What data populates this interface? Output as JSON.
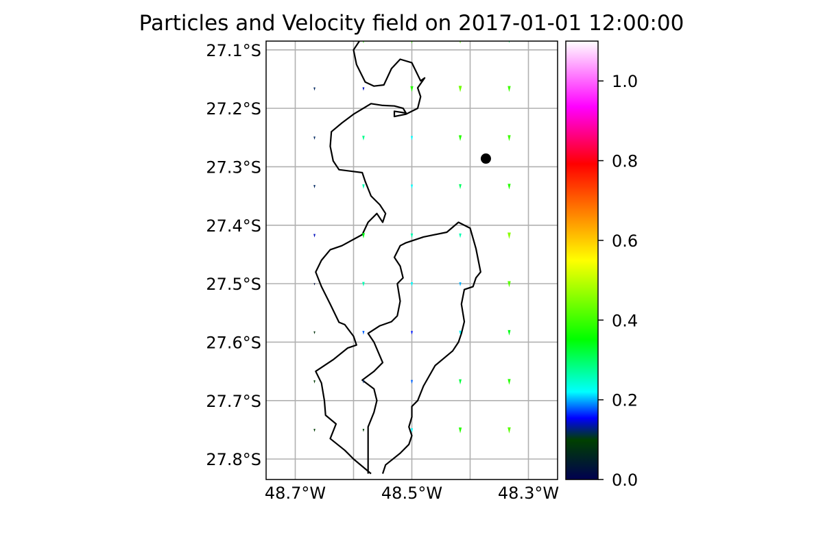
{
  "chart_data": [
    {
      "type": "quiver-map",
      "title": "Particles and Velocity field on 2017-01-01 12:00:00",
      "xlabel": "",
      "ylabel": "",
      "xlim": [
        -48.75,
        -48.25
      ],
      "ylim": [
        -27.835,
        -27.085
      ],
      "x_ticks": [
        {
          "value": -48.7,
          "label": "48.7°W"
        },
        {
          "value": -48.5,
          "label": "48.5°W"
        },
        {
          "value": -48.3,
          "label": "48.3°W"
        }
      ],
      "y_ticks": [
        {
          "value": -27.1,
          "label": "27.1°S"
        },
        {
          "value": -27.2,
          "label": "27.2°S"
        },
        {
          "value": -27.3,
          "label": "27.3°S"
        },
        {
          "value": -27.4,
          "label": "27.4°S"
        },
        {
          "value": -27.5,
          "label": "27.5°S"
        },
        {
          "value": -27.6,
          "label": "27.6°S"
        },
        {
          "value": -27.7,
          "label": "27.7°S"
        },
        {
          "value": -27.8,
          "label": "27.8°S"
        }
      ],
      "grid": true,
      "grid_x": [
        -48.7,
        -48.6,
        -48.5,
        -48.4,
        -48.3
      ],
      "grid_y": [
        -27.1,
        -27.2,
        -27.3,
        -27.4,
        -27.5,
        -27.6,
        -27.7,
        -27.8
      ],
      "particles": [
        {
          "lon": -48.373,
          "lat": -27.286
        }
      ],
      "vector_columns": [
        -48.667,
        -48.583,
        -48.5,
        -48.417,
        -48.333
      ],
      "vector_rows": [
        -27.084,
        -27.167,
        -27.251,
        -27.334,
        -27.418,
        -27.501,
        -27.584,
        -27.668,
        -27.751
      ],
      "speed_grid": [
        [
          null,
          0.38,
          0.4,
          0.42,
          0.3
        ],
        [
          0.12,
          0.14,
          0.38,
          0.44,
          0.4
        ],
        [
          0.12,
          0.28,
          0.22,
          0.38,
          0.4
        ],
        [
          0.12,
          0.26,
          0.22,
          0.3,
          0.38
        ],
        [
          0.14,
          0.34,
          0.26,
          0.26,
          0.46
        ],
        [
          0.02,
          0.26,
          0.22,
          0.2,
          0.42
        ],
        [
          0.08,
          0.18,
          0.16,
          0.22,
          0.34
        ],
        [
          0.1,
          0.12,
          0.18,
          0.32,
          0.38
        ],
        [
          0.1,
          0.1,
          0.22,
          0.38,
          0.42
        ]
      ],
      "coastline": [
        [
          -48.59,
          -27.085
        ],
        [
          -48.6,
          -27.1
        ],
        [
          -48.595,
          -27.125
        ],
        [
          -48.58,
          -27.155
        ],
        [
          -48.565,
          -27.162
        ],
        [
          -48.548,
          -27.16
        ],
        [
          -48.535,
          -27.132
        ],
        [
          -48.52,
          -27.116
        ],
        [
          -48.5,
          -27.122
        ],
        [
          -48.485,
          -27.153
        ],
        [
          -48.478,
          -27.148
        ],
        [
          -48.49,
          -27.165
        ],
        [
          -48.485,
          -27.18
        ],
        [
          -48.49,
          -27.2
        ],
        [
          -48.5,
          -27.205
        ],
        [
          -48.51,
          -27.21
        ],
        [
          -48.53,
          -27.214
        ],
        [
          -48.53,
          -27.205
        ],
        [
          -48.51,
          -27.208
        ],
        [
          -48.515,
          -27.2
        ],
        [
          -48.53,
          -27.196
        ],
        [
          -48.55,
          -27.195
        ],
        [
          -48.57,
          -27.192
        ],
        [
          -48.6,
          -27.21
        ],
        [
          -48.62,
          -27.225
        ],
        [
          -48.638,
          -27.24
        ],
        [
          -48.64,
          -27.265
        ],
        [
          -48.635,
          -27.29
        ],
        [
          -48.625,
          -27.305
        ],
        [
          -48.585,
          -27.31
        ],
        [
          -48.58,
          -27.325
        ],
        [
          -48.57,
          -27.35
        ],
        [
          -48.555,
          -27.365
        ],
        [
          -48.545,
          -27.38
        ],
        [
          -48.55,
          -27.395
        ],
        [
          -48.56,
          -27.38
        ],
        [
          -48.575,
          -27.395
        ],
        [
          -48.585,
          -27.416
        ],
        [
          -48.62,
          -27.435
        ],
        [
          -48.64,
          -27.442
        ],
        [
          -48.655,
          -27.46
        ],
        [
          -48.665,
          -27.48
        ],
        [
          -48.655,
          -27.505
        ],
        [
          -48.64,
          -27.535
        ],
        [
          -48.625,
          -27.566
        ],
        [
          -48.615,
          -27.57
        ],
        [
          -48.6,
          -27.59
        ],
        [
          -48.595,
          -27.605
        ],
        [
          -48.61,
          -27.61
        ],
        [
          -48.635,
          -27.63
        ],
        [
          -48.665,
          -27.65
        ],
        [
          -48.655,
          -27.67
        ],
        [
          -48.65,
          -27.7
        ],
        [
          -48.648,
          -27.725
        ],
        [
          -48.63,
          -27.74
        ],
        [
          -48.64,
          -27.765
        ],
        [
          -48.615,
          -27.785
        ],
        [
          -48.6,
          -27.8
        ],
        [
          -48.57,
          -27.825
        ]
      ],
      "inner_coastline": [
        [
          -48.575,
          -27.825
        ],
        [
          -48.575,
          -27.79
        ],
        [
          -48.575,
          -27.745
        ],
        [
          -48.565,
          -27.72
        ],
        [
          -48.56,
          -27.7
        ],
        [
          -48.565,
          -27.68
        ],
        [
          -48.585,
          -27.665
        ],
        [
          -48.565,
          -27.65
        ],
        [
          -48.55,
          -27.635
        ],
        [
          -48.565,
          -27.6
        ],
        [
          -48.575,
          -27.585
        ],
        [
          -48.555,
          -27.572
        ],
        [
          -48.535,
          -27.565
        ],
        [
          -48.525,
          -27.555
        ],
        [
          -48.52,
          -27.53
        ],
        [
          -48.525,
          -27.5
        ],
        [
          -48.515,
          -27.49
        ],
        [
          -48.52,
          -27.47
        ],
        [
          -48.53,
          -27.455
        ],
        [
          -48.52,
          -27.435
        ],
        [
          -48.51,
          -27.43
        ],
        [
          -48.48,
          -27.42
        ],
        [
          -48.44,
          -27.412
        ],
        [
          -48.42,
          -27.395
        ],
        [
          -48.4,
          -27.405
        ],
        [
          -48.39,
          -27.44
        ],
        [
          -48.382,
          -27.48
        ],
        [
          -48.39,
          -27.49
        ],
        [
          -48.395,
          -27.505
        ],
        [
          -48.41,
          -27.51
        ],
        [
          -48.415,
          -27.535
        ],
        [
          -48.41,
          -27.565
        ],
        [
          -48.415,
          -27.585
        ],
        [
          -48.42,
          -27.6
        ],
        [
          -48.43,
          -27.615
        ],
        [
          -48.46,
          -27.64
        ],
        [
          -48.48,
          -27.675
        ],
        [
          -48.49,
          -27.7
        ],
        [
          -48.5,
          -27.71
        ],
        [
          -48.5,
          -27.728
        ],
        [
          -48.505,
          -27.745
        ],
        [
          -48.5,
          -27.76
        ],
        [
          -48.505,
          -27.775
        ],
        [
          -48.52,
          -27.79
        ],
        [
          -48.545,
          -27.81
        ],
        [
          -48.55,
          -27.825
        ]
      ],
      "colorbar": {
        "range": [
          0.0,
          1.1
        ],
        "ticks": [
          {
            "value": 0.0,
            "label": "0.0"
          },
          {
            "value": 0.2,
            "label": "0.2"
          },
          {
            "value": 0.4,
            "label": "0.4"
          },
          {
            "value": 0.6,
            "label": "0.6"
          },
          {
            "value": 0.8,
            "label": "0.8"
          },
          {
            "value": 1.0,
            "label": "1.0"
          }
        ],
        "colormap": [
          "#000050",
          "#004000",
          "#0000ff",
          "#00ffff",
          "#00ff00",
          "#ffff00",
          "#ff0000",
          "#ff00ff",
          "#ffffff"
        ]
      }
    }
  ]
}
